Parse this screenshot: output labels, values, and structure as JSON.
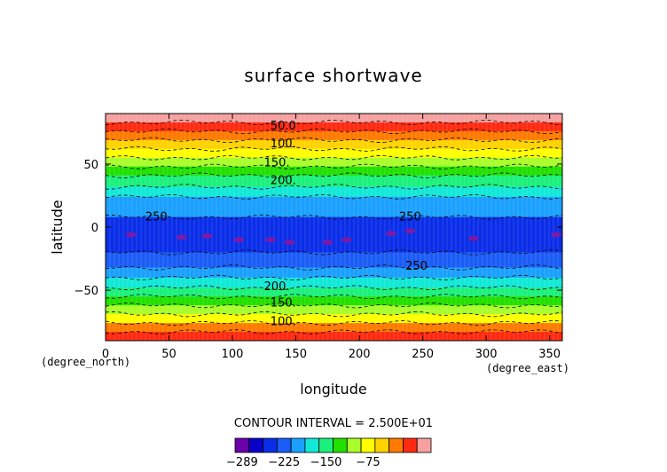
{
  "chart_data": {
    "type": "heatmap",
    "title": "surface shortwave",
    "xlabel": "longitude",
    "ylabel": "latitude",
    "x_unit_label": "(degree_east)",
    "y_unit_label": "(degree_north)",
    "xlim": [
      0,
      360
    ],
    "ylim": [
      -90,
      90
    ],
    "x_ticks": [
      "0",
      "50",
      "100",
      "150",
      "200",
      "250",
      "300",
      "350"
    ],
    "x_tick_values": [
      0,
      50,
      100,
      150,
      200,
      250,
      300,
      350
    ],
    "y_ticks": [
      "50",
      "0",
      "−50"
    ],
    "y_tick_values": [
      50,
      0,
      -50
    ],
    "contour_interval_text": "CONTOUR INTERVAL = 2.500E+01",
    "contour_labels": [
      {
        "text": "50.0",
        "lon": 140,
        "lat": 80
      },
      {
        "text": "100.",
        "lon": 140,
        "lat": 66
      },
      {
        "text": "150.",
        "lon": 135,
        "lat": 51
      },
      {
        "text": "200.",
        "lon": 140,
        "lat": 37
      },
      {
        "text": "250",
        "lon": 40,
        "lat": 8
      },
      {
        "text": "250",
        "lon": 240,
        "lat": 8
      },
      {
        "text": "250",
        "lon": 245,
        "lat": -31
      },
      {
        "text": "200.",
        "lon": 135,
        "lat": -47
      },
      {
        "text": "150.",
        "lon": 140,
        "lat": -60
      },
      {
        "text": "100.",
        "lon": 140,
        "lat": -75
      }
    ],
    "color_bands": [
      {
        "lat_max": 90,
        "lat_min": 83,
        "color": "#f6a0a0"
      },
      {
        "lat_max": 83,
        "lat_min": 76,
        "color": "#ff2a10"
      },
      {
        "lat_max": 76,
        "lat_min": 69,
        "color": "#ff7a00"
      },
      {
        "lat_max": 69,
        "lat_min": 62,
        "color": "#ffd200"
      },
      {
        "lat_max": 62,
        "lat_min": 55,
        "color": "#ffff00"
      },
      {
        "lat_max": 55,
        "lat_min": 48,
        "color": "#a8ff2a"
      },
      {
        "lat_max": 48,
        "lat_min": 41,
        "color": "#22e000"
      },
      {
        "lat_max": 41,
        "lat_min": 32,
        "color": "#1cf07c"
      },
      {
        "lat_max": 32,
        "lat_min": 24,
        "color": "#11e8d8"
      },
      {
        "lat_max": 24,
        "lat_min": 8,
        "color": "#1aa0ff"
      },
      {
        "lat_max": 8,
        "lat_min": -20,
        "color": "#0a2ee8"
      },
      {
        "lat_max": -20,
        "lat_min": -32,
        "color": "#1a5cf5"
      },
      {
        "lat_max": -32,
        "lat_min": -40,
        "color": "#1aa0ff"
      },
      {
        "lat_max": -40,
        "lat_min": -48,
        "color": "#11e8d8"
      },
      {
        "lat_max": -48,
        "lat_min": -55,
        "color": "#1cf07c"
      },
      {
        "lat_max": -55,
        "lat_min": -62,
        "color": "#22e000"
      },
      {
        "lat_max": -62,
        "lat_min": -69,
        "color": "#a8ff2a"
      },
      {
        "lat_max": -69,
        "lat_min": -76,
        "color": "#ffff00"
      },
      {
        "lat_max": -76,
        "lat_min": -83,
        "color": "#ff7a00"
      },
      {
        "lat_max": -83,
        "lat_min": -90,
        "color": "#ff2a10"
      }
    ],
    "purple_patches": [
      {
        "lon": 20,
        "lat": -6
      },
      {
        "lon": 60,
        "lat": -8
      },
      {
        "lon": 80,
        "lat": -7
      },
      {
        "lon": 105,
        "lat": -10
      },
      {
        "lon": 130,
        "lat": -10
      },
      {
        "lon": 145,
        "lat": -12
      },
      {
        "lon": 175,
        "lat": -12
      },
      {
        "lon": 190,
        "lat": -10
      },
      {
        "lon": 225,
        "lat": -5
      },
      {
        "lon": 240,
        "lat": -3
      },
      {
        "lon": 290,
        "lat": -9
      },
      {
        "lon": 355,
        "lat": -6
      }
    ],
    "colorbar": {
      "colors": [
        "#6a00a8",
        "#0a00c8",
        "#0a2ee8",
        "#1a5cf5",
        "#1aa0ff",
        "#11e8d8",
        "#1cf07c",
        "#22e000",
        "#a8ff2a",
        "#ffff00",
        "#ffd200",
        "#ff7a00",
        "#ff2a10",
        "#f6a0a0"
      ],
      "labels": [
        "−289",
        "−225",
        "−150",
        "−75"
      ],
      "label_positions": [
        0,
        3,
        6,
        9
      ]
    }
  }
}
